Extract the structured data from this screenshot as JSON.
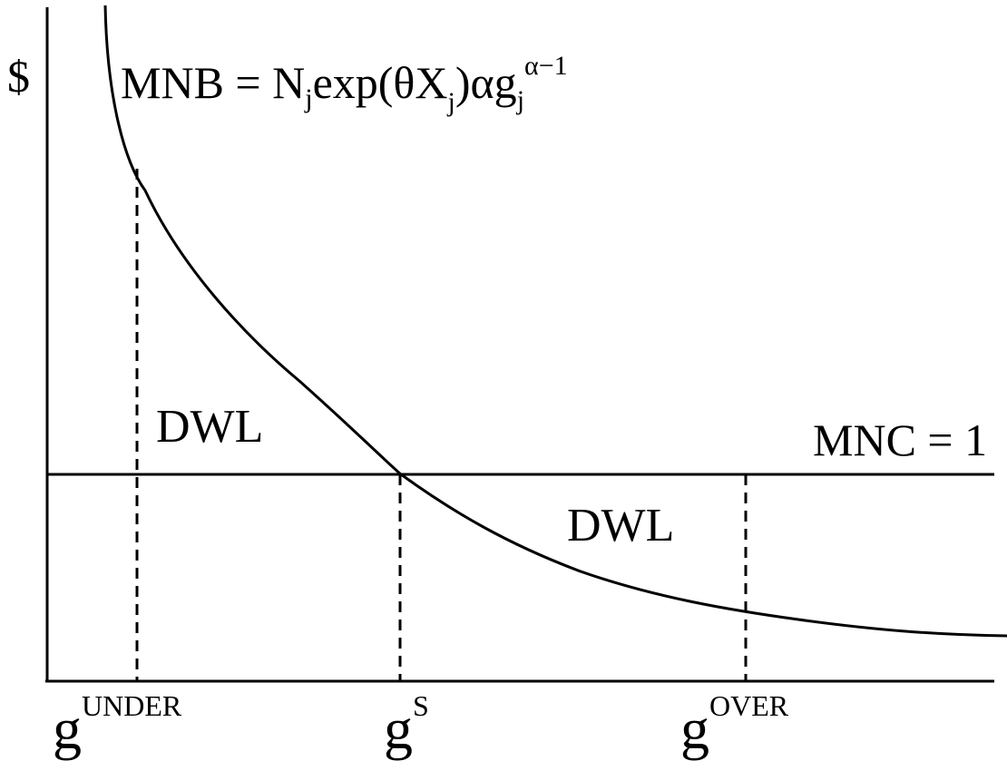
{
  "labels": {
    "y_axis": "$",
    "mnb": {
      "base": "MNB = N",
      "sub1": "j",
      "mid": "exp(θX",
      "sub2": "j",
      "mid2": ")αg",
      "sub3": "j",
      "sup": "α−1"
    },
    "mnc": "MNC = 1",
    "dwl_left": "DWL",
    "dwl_right": "DWL",
    "g_under": {
      "base": "g",
      "sup": "UNDER"
    },
    "g_s": {
      "base": "g",
      "sup": "S"
    },
    "g_over": {
      "base": "g",
      "sup": "OVER"
    }
  },
  "colors": {
    "stroke": "#000000",
    "background": "#ffffff"
  }
}
